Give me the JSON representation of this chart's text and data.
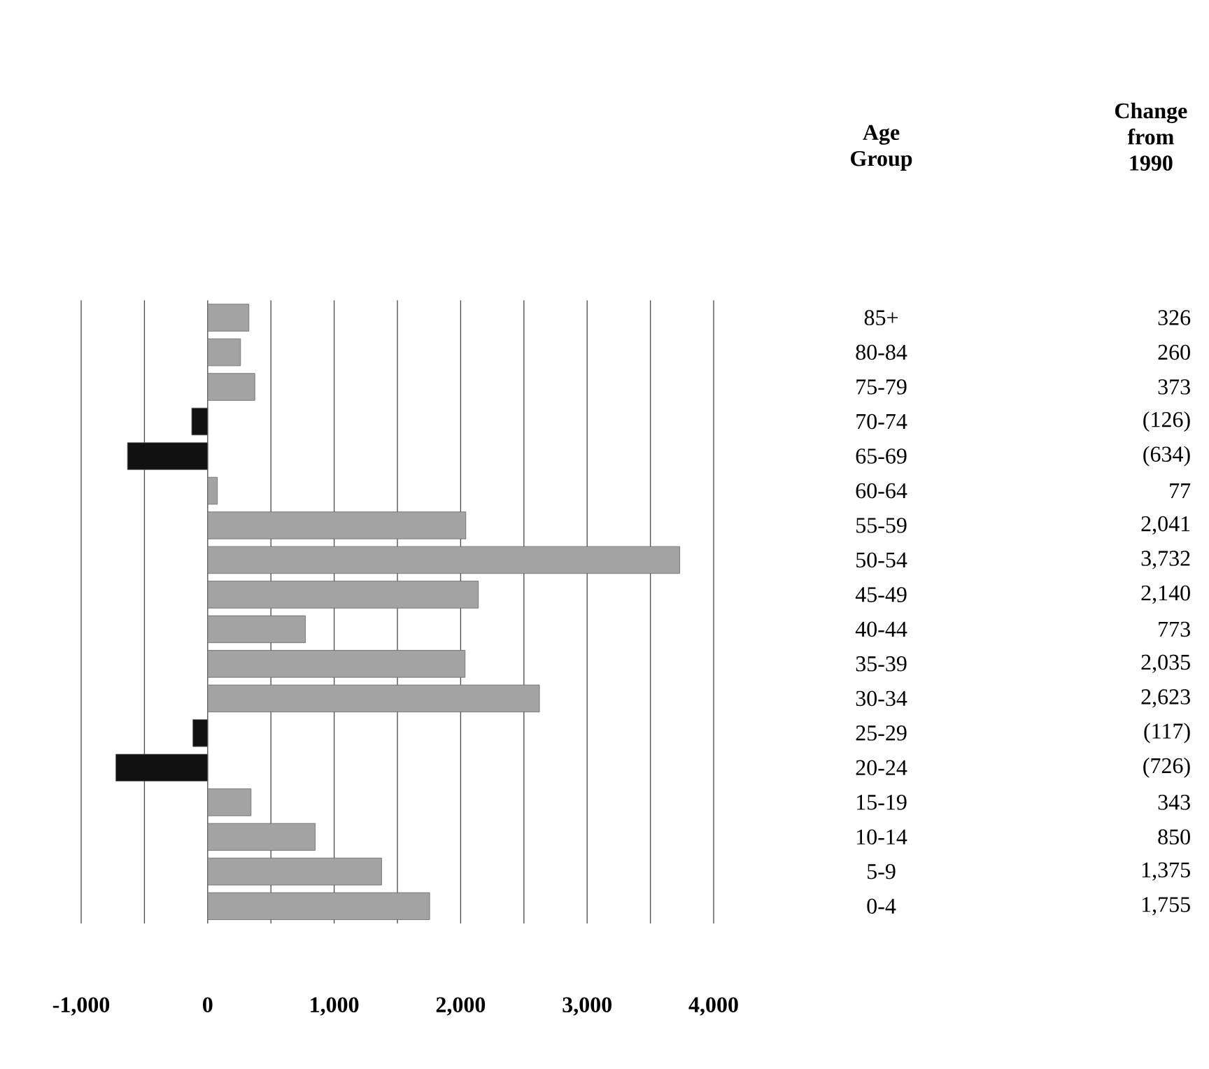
{
  "chart_data": {
    "type": "bar",
    "orientation": "horizontal",
    "annotations": [
      "Age Group",
      "Change from 1990"
    ],
    "categories": [
      "85+",
      "80-84",
      "75-79",
      "70-74",
      "65-69",
      "60-64",
      "55-59",
      "50-54",
      "45-49",
      "40-44",
      "35-39",
      "30-34",
      "25-29",
      "20-24",
      "15-19",
      "10-14",
      "5-9",
      "0-4"
    ],
    "values": [
      326,
      260,
      373,
      -126,
      -634,
      77,
      2041,
      3732,
      2140,
      773,
      2035,
      2623,
      -117,
      -726,
      343,
      850,
      1375,
      1755
    ],
    "value_labels": [
      "326",
      "260",
      "373",
      "(126)",
      "(634)",
      "77",
      "2,041",
      "3,732",
      "2,140",
      "773",
      "2,035",
      "2,623",
      "(117)",
      "(726)",
      "343",
      "850",
      "1,375",
      "1,755"
    ],
    "colors": [
      "#a3a3a3",
      "#a3a3a3",
      "#a3a3a3",
      "#111111",
      "#111111",
      "#a3a3a3",
      "#a3a3a3",
      "#a3a3a3",
      "#a3a3a3",
      "#a3a3a3",
      "#a3a3a3",
      "#a3a3a3",
      "#111111",
      "#111111",
      "#a3a3a3",
      "#a3a3a3",
      "#a3a3a3",
      "#a3a3a3"
    ],
    "xlim": [
      -1000,
      4000
    ],
    "xticks": [
      {
        "value": -1000,
        "label": "-1,000"
      },
      {
        "value": -500,
        "label": null
      },
      {
        "value": 0,
        "label": "0"
      },
      {
        "value": 500,
        "label": null
      },
      {
        "value": 1000,
        "label": "1,000"
      },
      {
        "value": 1500,
        "label": null
      },
      {
        "value": 2000,
        "label": "2,000"
      },
      {
        "value": 2500,
        "label": null
      },
      {
        "value": 3000,
        "label": "3,000"
      },
      {
        "value": 3500,
        "label": null
      },
      {
        "value": 4000,
        "label": "4,000"
      }
    ],
    "grid": "x"
  }
}
